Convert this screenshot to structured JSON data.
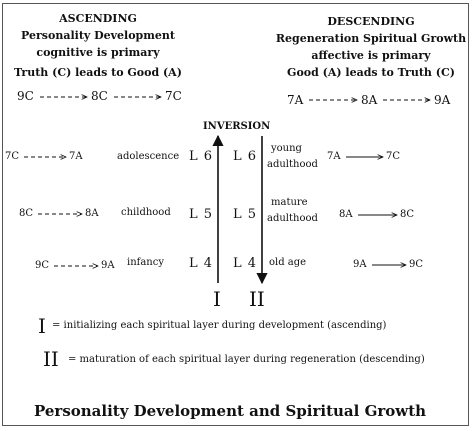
{
  "ascending": {
    "heading": "ASCENDING",
    "line1": "Personality Development",
    "line2": "cognitive is primary",
    "line3": "Truth (C) leads to Good (A)",
    "chain": [
      "9C",
      "8C",
      "7C"
    ]
  },
  "descending": {
    "heading": "DESCENDING",
    "line1": "Regeneration Spiritual Growth",
    "line2": "affective is primary",
    "line3": "Good (A) leads to Truth (C)",
    "chain": [
      "7A",
      "8A",
      "9A"
    ]
  },
  "inversion_label": "INVERSION",
  "rows": [
    {
      "left_from": "7C",
      "left_to": "7A",
      "stage_left": "adolescence",
      "level_left": "L 6",
      "level_right": "L 6",
      "stage_right_1": "young",
      "stage_right_2": "adulthood",
      "right_from": "7A",
      "right_to": "7C"
    },
    {
      "left_from": "8C",
      "left_to": "8A",
      "stage_left": "childhood",
      "level_left": "L 5",
      "level_right": "L 5",
      "stage_right_1": "mature",
      "stage_right_2": "adulthood",
      "right_from": "8A",
      "right_to": "8C"
    },
    {
      "left_from": "9C",
      "left_to": "9A",
      "stage_left": "infancy",
      "level_left": "L 4",
      "level_right": "L 4",
      "stage_right_1": "old age",
      "stage_right_2": "",
      "right_from": "9A",
      "right_to": "9C"
    }
  ],
  "axis_labels": {
    "left": "I",
    "right": "II"
  },
  "legend": [
    {
      "symbol": "I",
      "text": "= initializing each spiritual layer during development (ascending)"
    },
    {
      "symbol": "II",
      "text": "= maturation of each spiritual layer during regeneration (descending)"
    }
  ],
  "title": "Personality Development and Spiritual Growth"
}
